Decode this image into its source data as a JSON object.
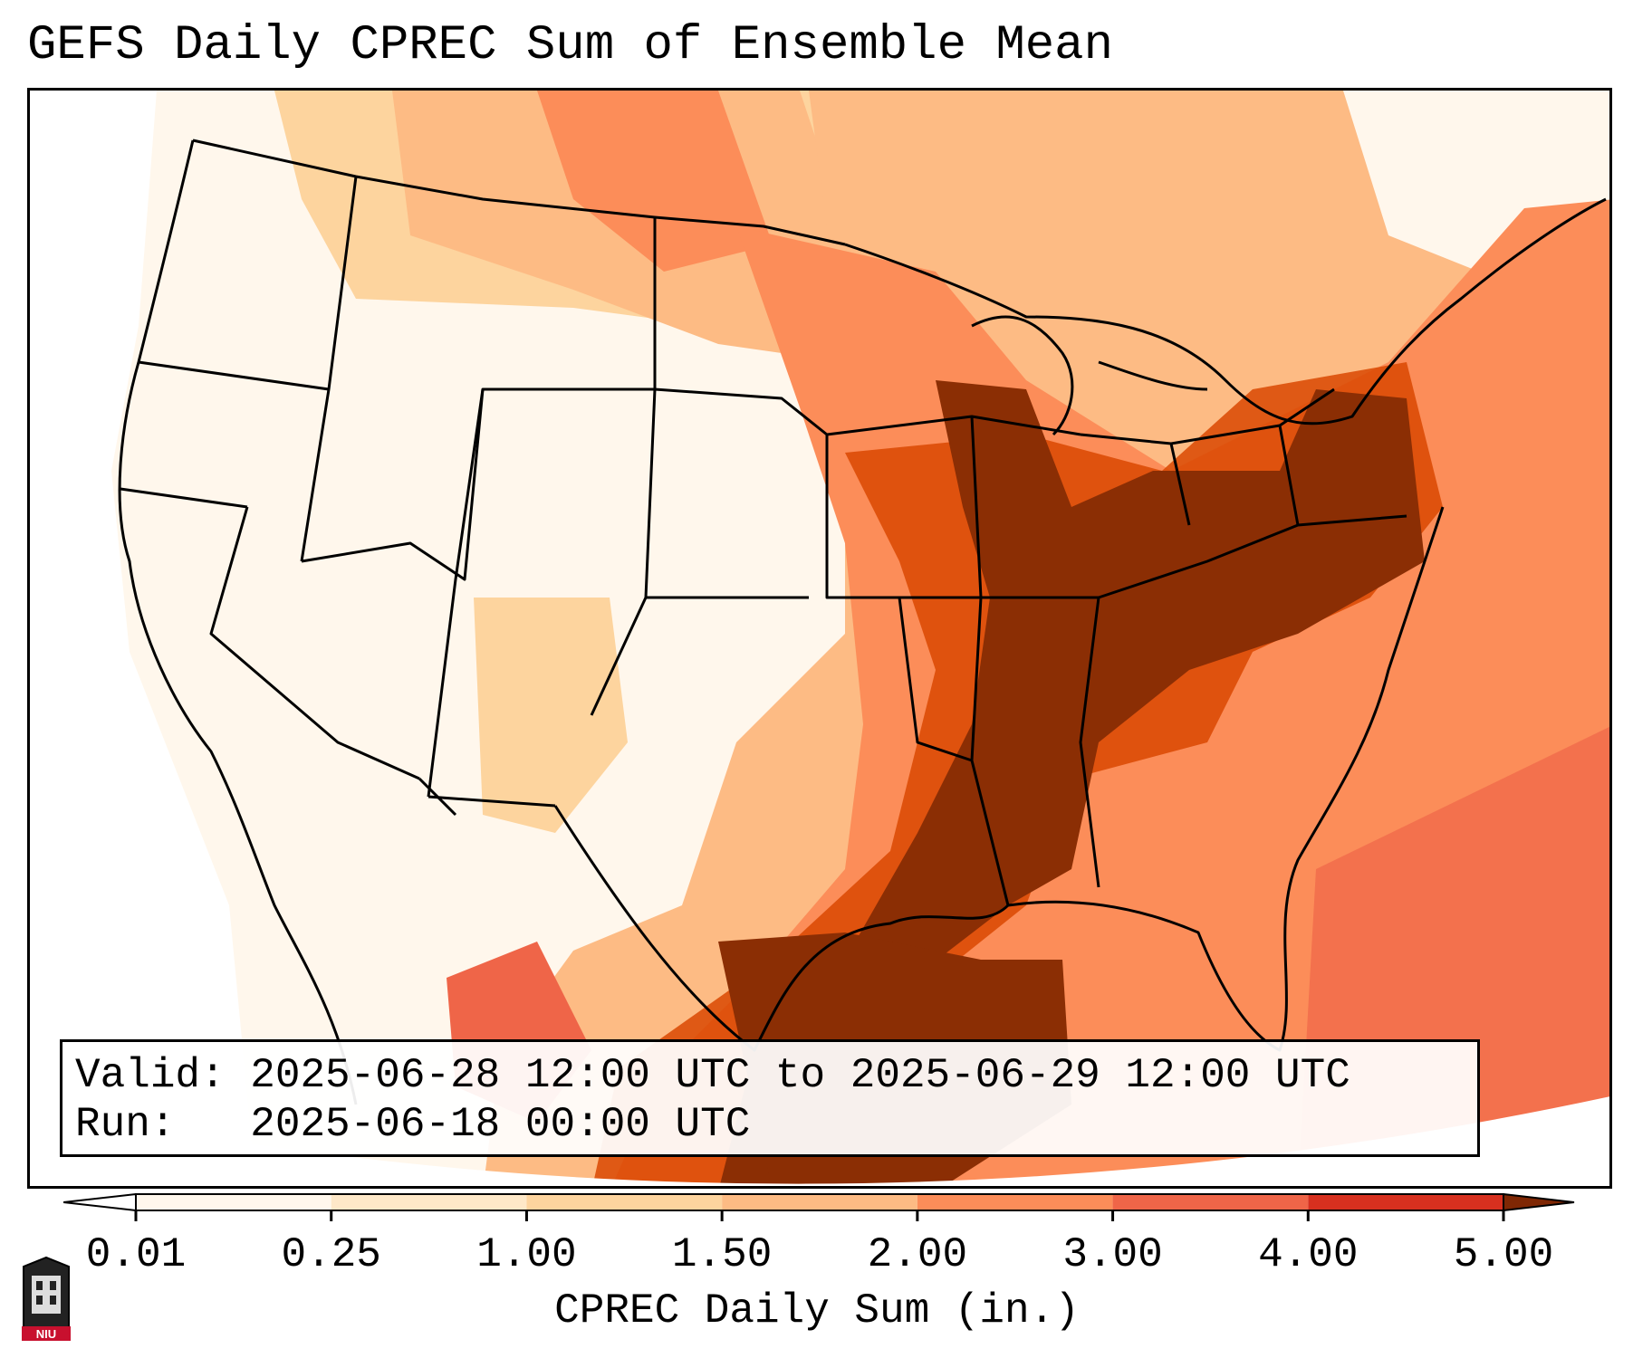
{
  "title": "GEFS Daily CPREC Sum of Ensemble Mean",
  "info": {
    "valid_line": "Valid: 2025-06-28 12:00 UTC to 2025-06-29 12:00 UTC",
    "run_line": "Run:   2025-06-18 00:00 UTC"
  },
  "colorbar": {
    "label": "CPREC Daily Sum (in.)",
    "ticks": [
      "0.01",
      "0.25",
      "1.00",
      "1.50",
      "2.00",
      "3.00",
      "4.00",
      "5.00"
    ],
    "colors": [
      "#fff7ec",
      "#fee8c8",
      "#fdd49e",
      "#fdbb84",
      "#fc8d59",
      "#ef6548",
      "#d7301f",
      "#8b2e04"
    ],
    "under_color": "#ffffff",
    "over_color": "#7f2704"
  },
  "logo": {
    "text": "NIU"
  }
}
